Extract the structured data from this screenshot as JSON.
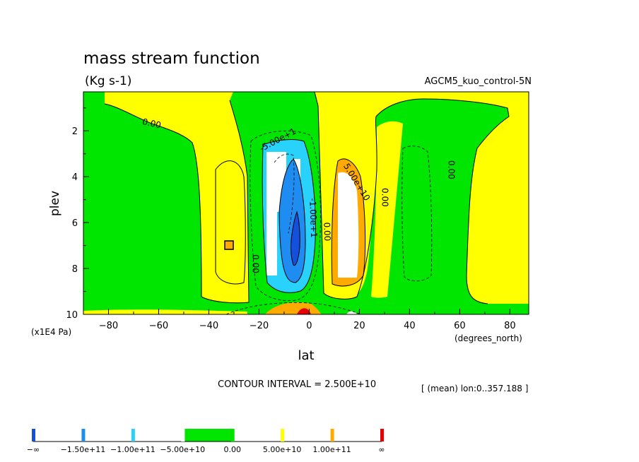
{
  "chart_data": {
    "type": "contour",
    "title": "mass stream function",
    "subtitle": "(Kg s-1)",
    "run_label": "AGCM5_kuo_control-5N",
    "xlabel": "lat",
    "xunits": "(degrees_north)",
    "ylabel": "plev",
    "yunits": "(x1E4 Pa)",
    "xlim": [
      -90,
      87.5
    ],
    "ylim": [
      10,
      0.3
    ],
    "x_ticks": [
      -80,
      -60,
      -40,
      -20,
      0,
      20,
      40,
      60,
      80
    ],
    "x_tick_labels": [
      "−80",
      "−60",
      "−40",
      "−20",
      "0",
      "20",
      "40",
      "60",
      "80"
    ],
    "y_ticks": [
      2,
      4,
      6,
      8,
      10
    ],
    "y_tick_labels": [
      "2",
      "4",
      "6",
      "8",
      "10"
    ],
    "contour_interval_text": "CONTOUR INTERVAL = 2.500E+10",
    "mean_text": "[ (mean) lon:0..357.188 ]",
    "contour_labels": [
      {
        "text": "0.00",
        "lat": -63,
        "plev": 1.8,
        "rotate": 12
      },
      {
        "text": "-5.00e+1",
        "lat": -12,
        "plev": 2.5,
        "rotate": -28
      },
      {
        "text": "-1.00e+1",
        "lat": 0.5,
        "plev": 5.8,
        "rotate": 88
      },
      {
        "text": "0.00",
        "lat": 6,
        "plev": 6.4,
        "rotate": 88
      },
      {
        "text": "0.00",
        "lat": -22.5,
        "plev": 7.8,
        "rotate": 90
      },
      {
        "text": "5.00e+10",
        "lat": 18,
        "plev": 4.3,
        "rotate": 58
      },
      {
        "text": "0.00",
        "lat": 29,
        "plev": 4.9,
        "rotate": 90
      },
      {
        "text": "0.00",
        "lat": 55.5,
        "plev": 3.7,
        "rotate": 90
      }
    ],
    "color_levels": [
      {
        "label": "−∞",
        "color": "#1450dc"
      },
      {
        "label": "−1.50e+11",
        "color": "#1e8cf0"
      },
      {
        "label": "−1.00e+11",
        "color": "#28d2fa"
      },
      {
        "label": "−5.00e+10",
        "color": "#ffffff"
      },
      {
        "label": "0.00",
        "color": "#00e600"
      },
      {
        "label": "5.00e+10",
        "color": "#ffff00"
      },
      {
        "label": "1.00e+11",
        "color": "#ffaa00"
      },
      {
        "label": "∞",
        "color": "#e60000"
      }
    ]
  },
  "colors": {
    "green": "#00e600",
    "yellow": "#ffff00",
    "orange": "#ffaa00",
    "red": "#e60000",
    "white": "#ffffff",
    "cyan": "#28d2fa",
    "lightblue": "#1e8cf0",
    "blue": "#1450dc"
  }
}
